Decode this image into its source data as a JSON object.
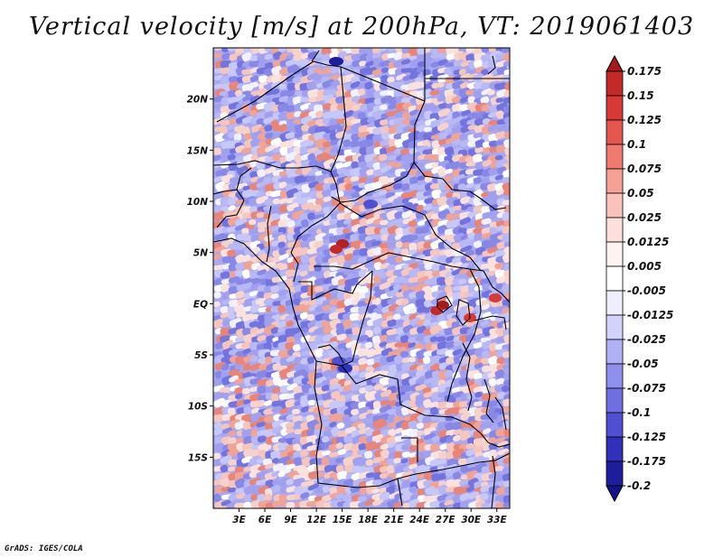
{
  "chart_data": {
    "type": "heatmap",
    "title": "Vertical velocity [m/s] at 200hPa, VT: 2019061403",
    "variable": "Vertical velocity",
    "units": "m/s",
    "level": "200hPa",
    "valid_time": "2019061403",
    "x_range_deg_lon": [
      0,
      34.5
    ],
    "y_range_deg_lat": [
      -20,
      25
    ],
    "x_ticks": [
      {
        "value": 3,
        "label": "3E"
      },
      {
        "value": 6,
        "label": "6E"
      },
      {
        "value": 9,
        "label": "9E"
      },
      {
        "value": 12,
        "label": "12E"
      },
      {
        "value": 15,
        "label": "15E"
      },
      {
        "value": 18,
        "label": "18E"
      },
      {
        "value": 21,
        "label": "21E"
      },
      {
        "value": 24,
        "label": "24E"
      },
      {
        "value": 27,
        "label": "27E"
      },
      {
        "value": 30,
        "label": "30E"
      },
      {
        "value": 33,
        "label": "33E"
      }
    ],
    "y_ticks": [
      {
        "value": 20,
        "label": "20N"
      },
      {
        "value": 15,
        "label": "15N"
      },
      {
        "value": 10,
        "label": "10N"
      },
      {
        "value": 5,
        "label": "5N"
      },
      {
        "value": 0,
        "label": "EQ"
      },
      {
        "value": -5,
        "label": "5S"
      },
      {
        "value": -10,
        "label": "10S"
      },
      {
        "value": -15,
        "label": "15S"
      }
    ],
    "colorbar": {
      "labels": [
        "0.175",
        "0.15",
        "0.125",
        "0.1",
        "0.075",
        "0.05",
        "0.025",
        "0.0125",
        "0.005",
        "-0.005",
        "-0.0125",
        "-0.025",
        "-0.05",
        "-0.075",
        "-0.1",
        "-0.125",
        "-0.175",
        "-0.2"
      ],
      "colors": [
        "#a3191c",
        "#c12a28",
        "#d73a36",
        "#e4574f",
        "#ee7a70",
        "#f5a196",
        "#f9c3bb",
        "#fde0dc",
        "#fff3f1",
        "#ffffff",
        "#eeeeff",
        "#d2d2fb",
        "#b0b0f4",
        "#8f8fec",
        "#6f6fe1",
        "#4f4fd2",
        "#3030b9",
        "#1e1e9c",
        "#14148a"
      ]
    }
  },
  "footer": "GrADS: IGES/COLA"
}
